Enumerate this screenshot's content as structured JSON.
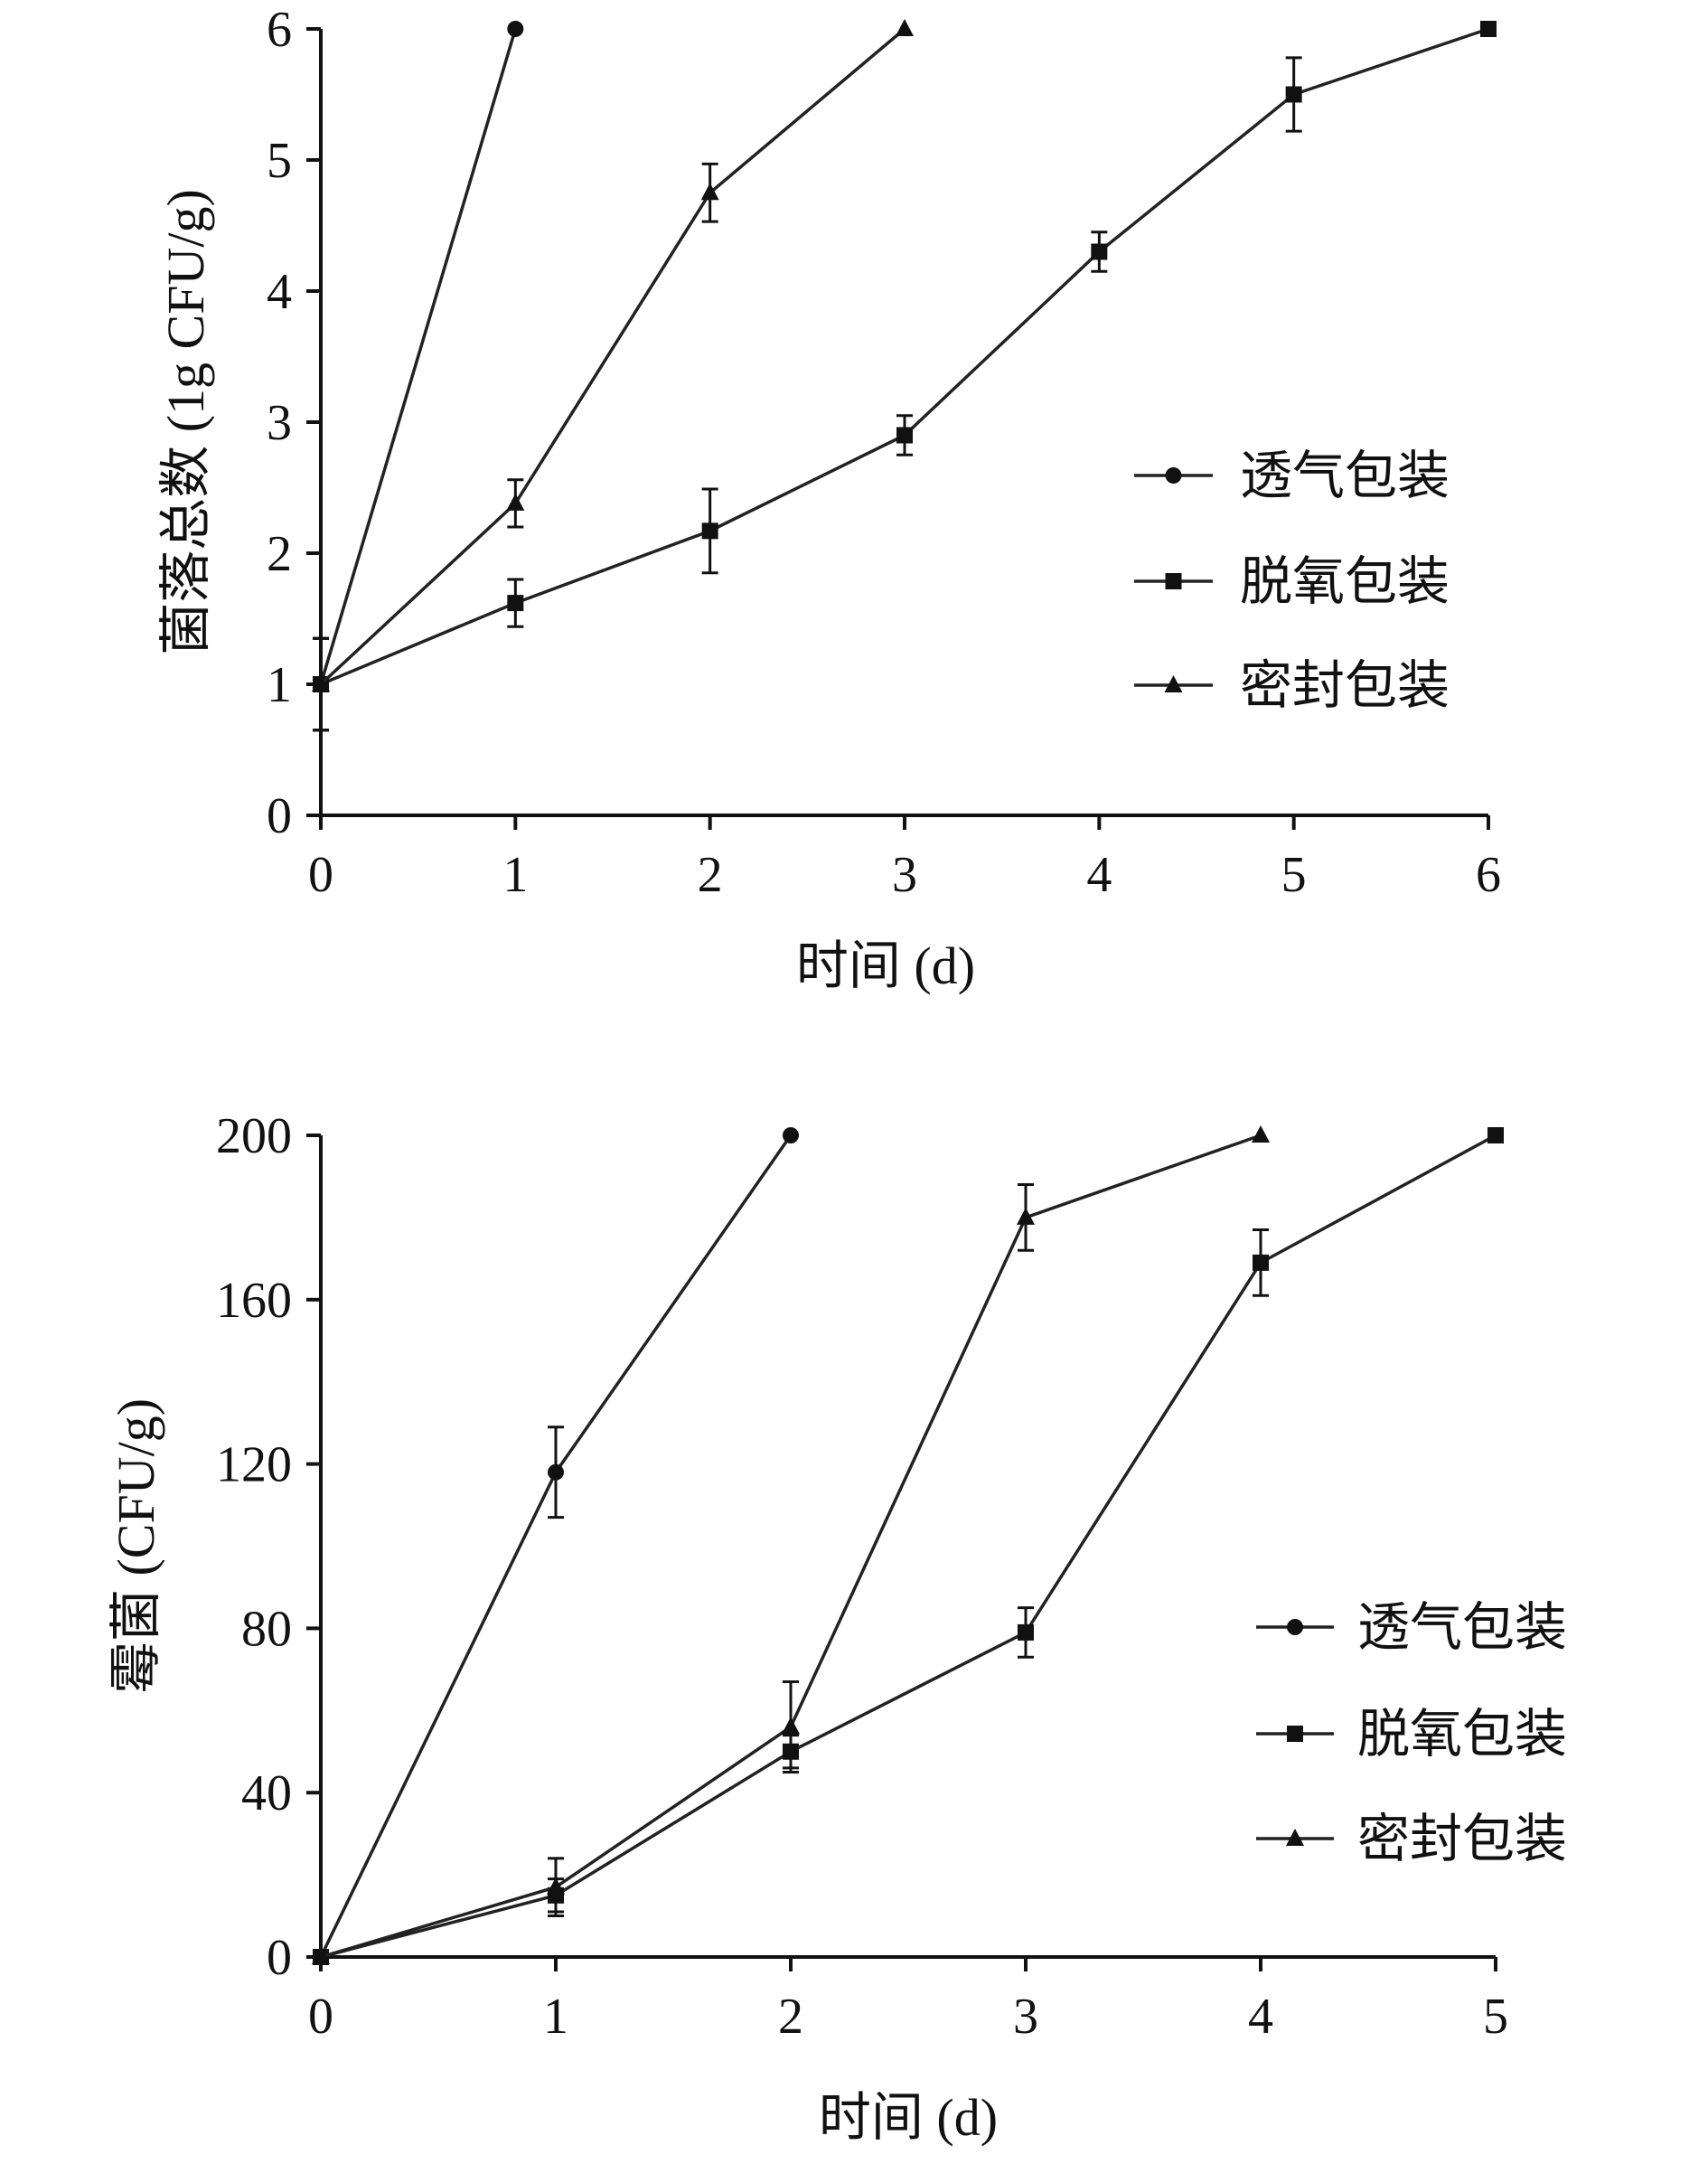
{
  "chart_data": [
    {
      "type": "line",
      "xlabel": "时间 (d)",
      "ylabel": "菌落总数 (1g CFU/g)",
      "xlim": [
        0,
        6
      ],
      "ylim": [
        0,
        6
      ],
      "xticks": [
        "0",
        "1",
        "2",
        "3",
        "4",
        "5",
        "6"
      ],
      "yticks": [
        "0",
        "1",
        "2",
        "3",
        "4",
        "5",
        "6"
      ],
      "grid": false,
      "legend_position": "right-middle",
      "series": [
        {
          "name": "透气包装",
          "marker": "circle",
          "x": [
            0,
            1
          ],
          "y": [
            1.0,
            6.0
          ],
          "err": [
            0.35,
            0
          ]
        },
        {
          "name": "脱氧包装",
          "marker": "square",
          "x": [
            0,
            1,
            2,
            3,
            4,
            5,
            6
          ],
          "y": [
            1.0,
            1.62,
            2.17,
            2.9,
            4.3,
            5.5,
            6.0
          ],
          "err": [
            0.35,
            0.18,
            0.32,
            0.15,
            0.15,
            0.28,
            0
          ]
        },
        {
          "name": "密封包装",
          "marker": "triangle",
          "x": [
            0,
            1,
            2,
            3
          ],
          "y": [
            1.0,
            2.38,
            4.75,
            6.0
          ],
          "err": [
            0.35,
            0.18,
            0.22,
            0
          ]
        }
      ]
    },
    {
      "type": "line",
      "xlabel": "时间 (d)",
      "ylabel": "霉菌 (CFU/g)",
      "xlim": [
        0,
        5
      ],
      "ylim": [
        0,
        200
      ],
      "xticks": [
        "0",
        "1",
        "2",
        "3",
        "4",
        "5"
      ],
      "yticks": [
        "0",
        "40",
        "80",
        "120",
        "160",
        "200"
      ],
      "grid": false,
      "legend_position": "right-lower",
      "series": [
        {
          "name": "透气包装",
          "marker": "circle",
          "x": [
            0,
            1,
            2
          ],
          "y": [
            0,
            118,
            200
          ],
          "err": [
            0,
            11,
            0
          ]
        },
        {
          "name": "脱氧包装",
          "marker": "square",
          "x": [
            0,
            1,
            2,
            3,
            4,
            5
          ],
          "y": [
            0,
            15,
            50,
            79,
            169,
            200
          ],
          "err": [
            0,
            4,
            4,
            6,
            8,
            0
          ]
        },
        {
          "name": "密封包装",
          "marker": "triangle",
          "x": [
            0,
            1,
            2,
            3,
            4
          ],
          "y": [
            0,
            17,
            56,
            180,
            200
          ],
          "err": [
            0,
            7,
            11,
            8,
            0
          ]
        }
      ]
    }
  ]
}
